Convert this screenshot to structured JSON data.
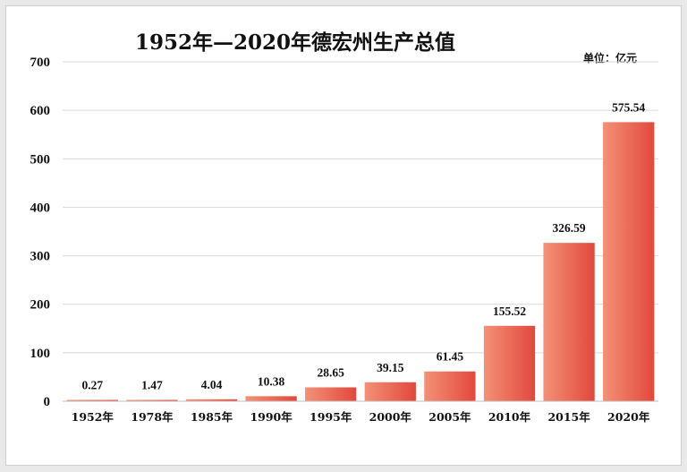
{
  "chart_data": {
    "type": "bar",
    "title": "1952年—2020年德宏州生产总值",
    "unit_label": "单位：亿元",
    "categories": [
      "1952年",
      "1978年",
      "1985年",
      "1990年",
      "1995年",
      "2000年",
      "2005年",
      "2010年",
      "2015年",
      "2020年"
    ],
    "values": [
      0.27,
      1.47,
      4.04,
      10.38,
      28.65,
      39.15,
      61.45,
      155.52,
      326.59,
      575.54
    ],
    "value_labels": [
      "0.27",
      "1.47",
      "4.04",
      "10.38",
      "28.65",
      "39.15",
      "61.45",
      "155.52",
      "326.59",
      "575.54"
    ],
    "ylim": [
      0,
      700
    ],
    "yticks": [
      0,
      100,
      200,
      300,
      400,
      500,
      600,
      700
    ],
    "grid": true,
    "bar_color": "#e2483c",
    "bar_highlight_color": "#f39177"
  }
}
